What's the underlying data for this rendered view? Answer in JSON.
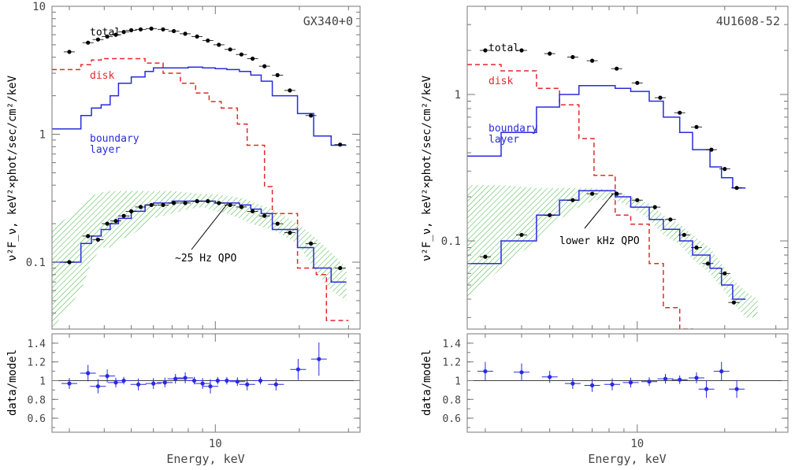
{
  "chart_data": [
    {
      "type": "line",
      "title": "GX340+0",
      "xlabel": "Energy, keV",
      "ylabel": "ν²F_ν, keV²×phot/sec/cm²/keV",
      "xscale": "log",
      "yscale": "log",
      "xlim": [
        2.6,
        33
      ],
      "ylim": [
        0.03,
        10
      ],
      "grid": false,
      "x_ticks": [
        {
          "value": 10,
          "label": "10"
        }
      ],
      "y_ticks": [
        {
          "value": 0.1,
          "label": "0.1"
        },
        {
          "value": 1,
          "label": "1"
        },
        {
          "value": 10,
          "label": "10"
        }
      ],
      "annotations": [
        {
          "text": "total",
          "color": "#000000"
        },
        {
          "text": "disk",
          "color": "#e8262b"
        },
        {
          "text": "boundary",
          "color": "#2a2ae0"
        },
        {
          "text": "layer",
          "color": "#2a2ae0"
        },
        {
          "text": "~25 Hz QPO",
          "color": "#000000"
        }
      ],
      "series": [
        {
          "name": "total",
          "style": "points",
          "color": "#000000",
          "x": [
            3.0,
            3.5,
            3.8,
            4.1,
            4.4,
            4.7,
            5.0,
            5.4,
            5.9,
            6.5,
            7.1,
            7.8,
            8.6,
            9.4,
            10.3,
            11.3,
            12.4,
            13.6,
            15.0,
            16.7,
            18.5,
            22.0,
            28.0
          ],
          "y": [
            4.4,
            5.2,
            5.5,
            5.8,
            6.0,
            6.3,
            6.5,
            6.6,
            6.7,
            6.6,
            6.4,
            6.1,
            5.8,
            5.4,
            5.0,
            4.6,
            4.2,
            3.9,
            3.4,
            2.9,
            2.2,
            1.4,
            0.83
          ]
        },
        {
          "name": "disk",
          "style": "dashed-step",
          "color": "#e8262b",
          "edges": [
            2.6,
            3.3,
            3.6,
            3.9,
            4.5,
            5.6,
            6.5,
            7.5,
            8.5,
            9.5,
            10.5,
            12.0,
            13.0,
            15.0,
            16.0,
            18.0,
            19.7,
            23.0,
            25.0,
            30.0
          ],
          "values": [
            3.2,
            3.5,
            3.8,
            3.9,
            3.9,
            3.6,
            3.0,
            2.5,
            2.1,
            1.8,
            1.6,
            1.2,
            0.82,
            0.39,
            0.24,
            0.24,
            0.09,
            0.08,
            0.035
          ]
        },
        {
          "name": "boundary layer",
          "style": "step",
          "color": "#2a2ae0",
          "edges": [
            2.6,
            3.3,
            3.6,
            3.9,
            4.2,
            4.5,
            5.0,
            5.6,
            6.0,
            7.0,
            8.0,
            9.0,
            10.0,
            11.0,
            12.2,
            13.4,
            14.6,
            16.0,
            19.7,
            22.5,
            26.0,
            29.5
          ],
          "values": [
            1.1,
            1.4,
            1.6,
            1.7,
            2.0,
            2.5,
            2.8,
            3.1,
            3.3,
            3.3,
            3.35,
            3.3,
            3.25,
            3.2,
            3.1,
            2.9,
            2.6,
            2.0,
            1.45,
            0.97,
            0.82
          ]
        },
        {
          "name": "~25 Hz QPO data",
          "style": "points",
          "color": "#000000",
          "x": [
            3.0,
            3.5,
            3.8,
            4.1,
            4.4,
            4.7,
            5.0,
            5.4,
            5.9,
            6.5,
            7.1,
            7.8,
            8.6,
            9.4,
            10.3,
            11.3,
            12.4,
            13.6,
            15.0,
            16.7,
            18.5,
            22.0,
            28.0
          ],
          "y": [
            0.1,
            0.16,
            0.15,
            0.2,
            0.21,
            0.23,
            0.25,
            0.27,
            0.28,
            0.28,
            0.29,
            0.29,
            0.3,
            0.3,
            0.29,
            0.28,
            0.27,
            0.25,
            0.23,
            0.2,
            0.17,
            0.14,
            0.09
          ]
        },
        {
          "name": "~25 Hz QPO model",
          "style": "step",
          "color": "#2a2ae0",
          "edges": [
            2.6,
            3.3,
            3.6,
            3.9,
            4.2,
            4.5,
            5.0,
            5.6,
            6.0,
            7.0,
            8.0,
            9.0,
            10.0,
            11.0,
            12.2,
            13.4,
            14.6,
            16.0,
            19.7,
            22.5,
            26.0,
            29.5
          ],
          "values": [
            0.1,
            0.14,
            0.16,
            0.18,
            0.2,
            0.22,
            0.25,
            0.28,
            0.29,
            0.3,
            0.3,
            0.3,
            0.29,
            0.29,
            0.28,
            0.26,
            0.24,
            0.18,
            0.13,
            0.09,
            0.07
          ]
        },
        {
          "name": "~25 Hz QPO range",
          "style": "hatched-band",
          "color": "#3cb43c",
          "x": [
            2.6,
            3.3,
            3.6,
            3.9,
            4.2,
            4.5,
            5.0,
            5.6,
            6.0,
            7.0,
            8.0,
            9.0,
            10.0,
            11.0,
            12.2,
            13.4,
            14.6,
            16.0,
            19.7,
            22.5,
            26.0,
            29.5
          ],
          "y_low": [
            0.03,
            0.06,
            0.1,
            0.13,
            0.13,
            0.15,
            0.16,
            0.2,
            0.22,
            0.24,
            0.26,
            0.27,
            0.25,
            0.24,
            0.22,
            0.2,
            0.19,
            0.18,
            0.14,
            0.09,
            0.06,
            0.05
          ],
          "y_high": [
            0.18,
            0.27,
            0.33,
            0.35,
            0.36,
            0.36,
            0.36,
            0.36,
            0.36,
            0.36,
            0.35,
            0.34,
            0.34,
            0.33,
            0.32,
            0.3,
            0.28,
            0.26,
            0.2,
            0.16,
            0.12,
            0.09
          ]
        }
      ],
      "ratio": {
        "ylabel": "data/model",
        "ylim": [
          0.45,
          1.5
        ],
        "y_ticks": [
          {
            "value": 0.6,
            "label": "0.6"
          },
          {
            "value": 0.8,
            "label": "0.8"
          },
          {
            "value": 1,
            "label": "1"
          },
          {
            "value": 1.2,
            "label": "1.2"
          },
          {
            "value": 1.4,
            "label": "1.4"
          }
        ],
        "x": [
          3.0,
          3.5,
          3.8,
          4.1,
          4.4,
          4.7,
          5.3,
          6.0,
          6.6,
          7.2,
          7.8,
          8.4,
          9.0,
          9.6,
          10.2,
          11.0,
          12.0,
          13.0,
          14.5,
          16.5,
          19.8,
          23.5
        ],
        "y": [
          0.97,
          1.08,
          0.94,
          1.05,
          0.98,
          1.0,
          0.96,
          0.97,
          0.98,
          1.02,
          1.03,
          1.0,
          0.97,
          0.94,
          1.0,
          1.0,
          0.99,
          0.96,
          1.0,
          0.96,
          1.12,
          1.23
        ]
      }
    },
    {
      "type": "line",
      "title": "4U1608-52",
      "xlabel": "Energy, keV",
      "ylabel": "ν²F_ν, keV²×phot/sec/cm²/keV",
      "xscale": "log",
      "yscale": "log",
      "xlim": [
        2.6,
        33
      ],
      "ylim": [
        0.025,
        4
      ],
      "grid": false,
      "x_ticks": [
        {
          "value": 10,
          "label": "10"
        }
      ],
      "y_ticks": [
        {
          "value": 0.1,
          "label": "0.1"
        },
        {
          "value": 1,
          "label": "1"
        }
      ],
      "annotations": [
        {
          "text": "total",
          "color": "#000000"
        },
        {
          "text": "disk",
          "color": "#e8262b"
        },
        {
          "text": "boundary",
          "color": "#2a2ae0"
        },
        {
          "text": "layer",
          "color": "#2a2ae0"
        },
        {
          "text": "lower kHz QPO",
          "color": "#000000"
        }
      ],
      "series": [
        {
          "name": "total",
          "style": "points",
          "color": "#000000",
          "x": [
            3.0,
            4.0,
            5.0,
            6.0,
            7.0,
            8.5,
            10.0,
            12.0,
            14.0,
            16.0,
            18.0,
            20.0,
            22.0
          ],
          "y": [
            2.0,
            2.0,
            1.9,
            1.8,
            1.7,
            1.5,
            1.2,
            0.95,
            0.75,
            0.6,
            0.42,
            0.31,
            0.23
          ]
        },
        {
          "name": "disk",
          "style": "dashed-step",
          "color": "#e8262b",
          "edges": [
            2.6,
            3.4,
            4.5,
            5.4,
            6.3,
            7.1,
            8.4,
            9.5,
            11.0,
            12.3,
            14.0,
            15.5,
            17.8
          ],
          "values": [
            1.6,
            1.45,
            1.1,
            0.85,
            0.5,
            0.28,
            0.15,
            0.13,
            0.07,
            0.035,
            0.025,
            0.01
          ]
        },
        {
          "name": "boundary layer",
          "style": "step",
          "color": "#2a2ae0",
          "edges": [
            2.6,
            3.4,
            4.5,
            5.4,
            6.3,
            7.1,
            8.4,
            9.5,
            11.0,
            12.3,
            14.0,
            15.5,
            17.8,
            19.5,
            21.3,
            23.6
          ],
          "values": [
            0.38,
            0.55,
            0.82,
            1.0,
            1.15,
            1.15,
            1.1,
            1.05,
            0.9,
            0.7,
            0.55,
            0.42,
            0.32,
            0.27,
            0.23
          ]
        },
        {
          "name": "lower kHz QPO data",
          "style": "points",
          "color": "#000000",
          "x": [
            3.0,
            4.0,
            5.0,
            6.0,
            7.0,
            8.5,
            10.0,
            11.5,
            13.0,
            14.5,
            16.0,
            17.5,
            20.0,
            21.5
          ],
          "y": [
            0.078,
            0.11,
            0.15,
            0.19,
            0.21,
            0.21,
            0.19,
            0.17,
            0.14,
            0.11,
            0.09,
            0.07,
            0.06,
            0.038
          ]
        },
        {
          "name": "lower kHz QPO model",
          "style": "step",
          "color": "#2a2ae0",
          "edges": [
            2.6,
            3.4,
            4.5,
            5.4,
            6.3,
            7.1,
            8.4,
            9.5,
            11.0,
            12.3,
            14.0,
            15.5,
            17.8,
            19.5,
            21.3,
            23.6
          ],
          "values": [
            0.07,
            0.1,
            0.15,
            0.19,
            0.22,
            0.22,
            0.2,
            0.17,
            0.14,
            0.12,
            0.1,
            0.08,
            0.065,
            0.05,
            0.04
          ]
        },
        {
          "name": "lower kHz QPO range",
          "style": "hatched-band",
          "color": "#3cb43c",
          "x": [
            2.6,
            3.4,
            4.5,
            5.4,
            6.3,
            7.1,
            8.4,
            9.5,
            11.0,
            12.3,
            14.0,
            15.5,
            17.8,
            19.5,
            21.3,
            23.6,
            26.0
          ],
          "y_low": [
            0.04,
            0.065,
            0.1,
            0.14,
            0.17,
            0.19,
            0.19,
            0.17,
            0.14,
            0.11,
            0.095,
            0.075,
            0.06,
            0.048,
            0.038,
            0.03,
            0.03
          ],
          "y_high": [
            0.24,
            0.24,
            0.23,
            0.23,
            0.23,
            0.23,
            0.22,
            0.2,
            0.18,
            0.15,
            0.13,
            0.11,
            0.09,
            0.07,
            0.055,
            0.045,
            0.04
          ]
        }
      ],
      "ratio": {
        "ylabel": "data/model",
        "ylim": [
          0.45,
          1.5
        ],
        "y_ticks": [
          {
            "value": 0.6,
            "label": "0.6"
          },
          {
            "value": 0.8,
            "label": "0.8"
          },
          {
            "value": 1,
            "label": "1"
          },
          {
            "value": 1.2,
            "label": "1.2"
          },
          {
            "value": 1.4,
            "label": "1.4"
          }
        ],
        "x": [
          3.0,
          4.0,
          5.0,
          6.0,
          7.0,
          8.2,
          9.5,
          11.0,
          12.5,
          14.0,
          16.0,
          17.3,
          19.5,
          22.0
        ],
        "y": [
          1.1,
          1.09,
          1.04,
          0.97,
          0.95,
          0.96,
          0.98,
          0.99,
          1.02,
          1.01,
          1.03,
          0.91,
          1.1,
          0.91
        ]
      }
    }
  ]
}
